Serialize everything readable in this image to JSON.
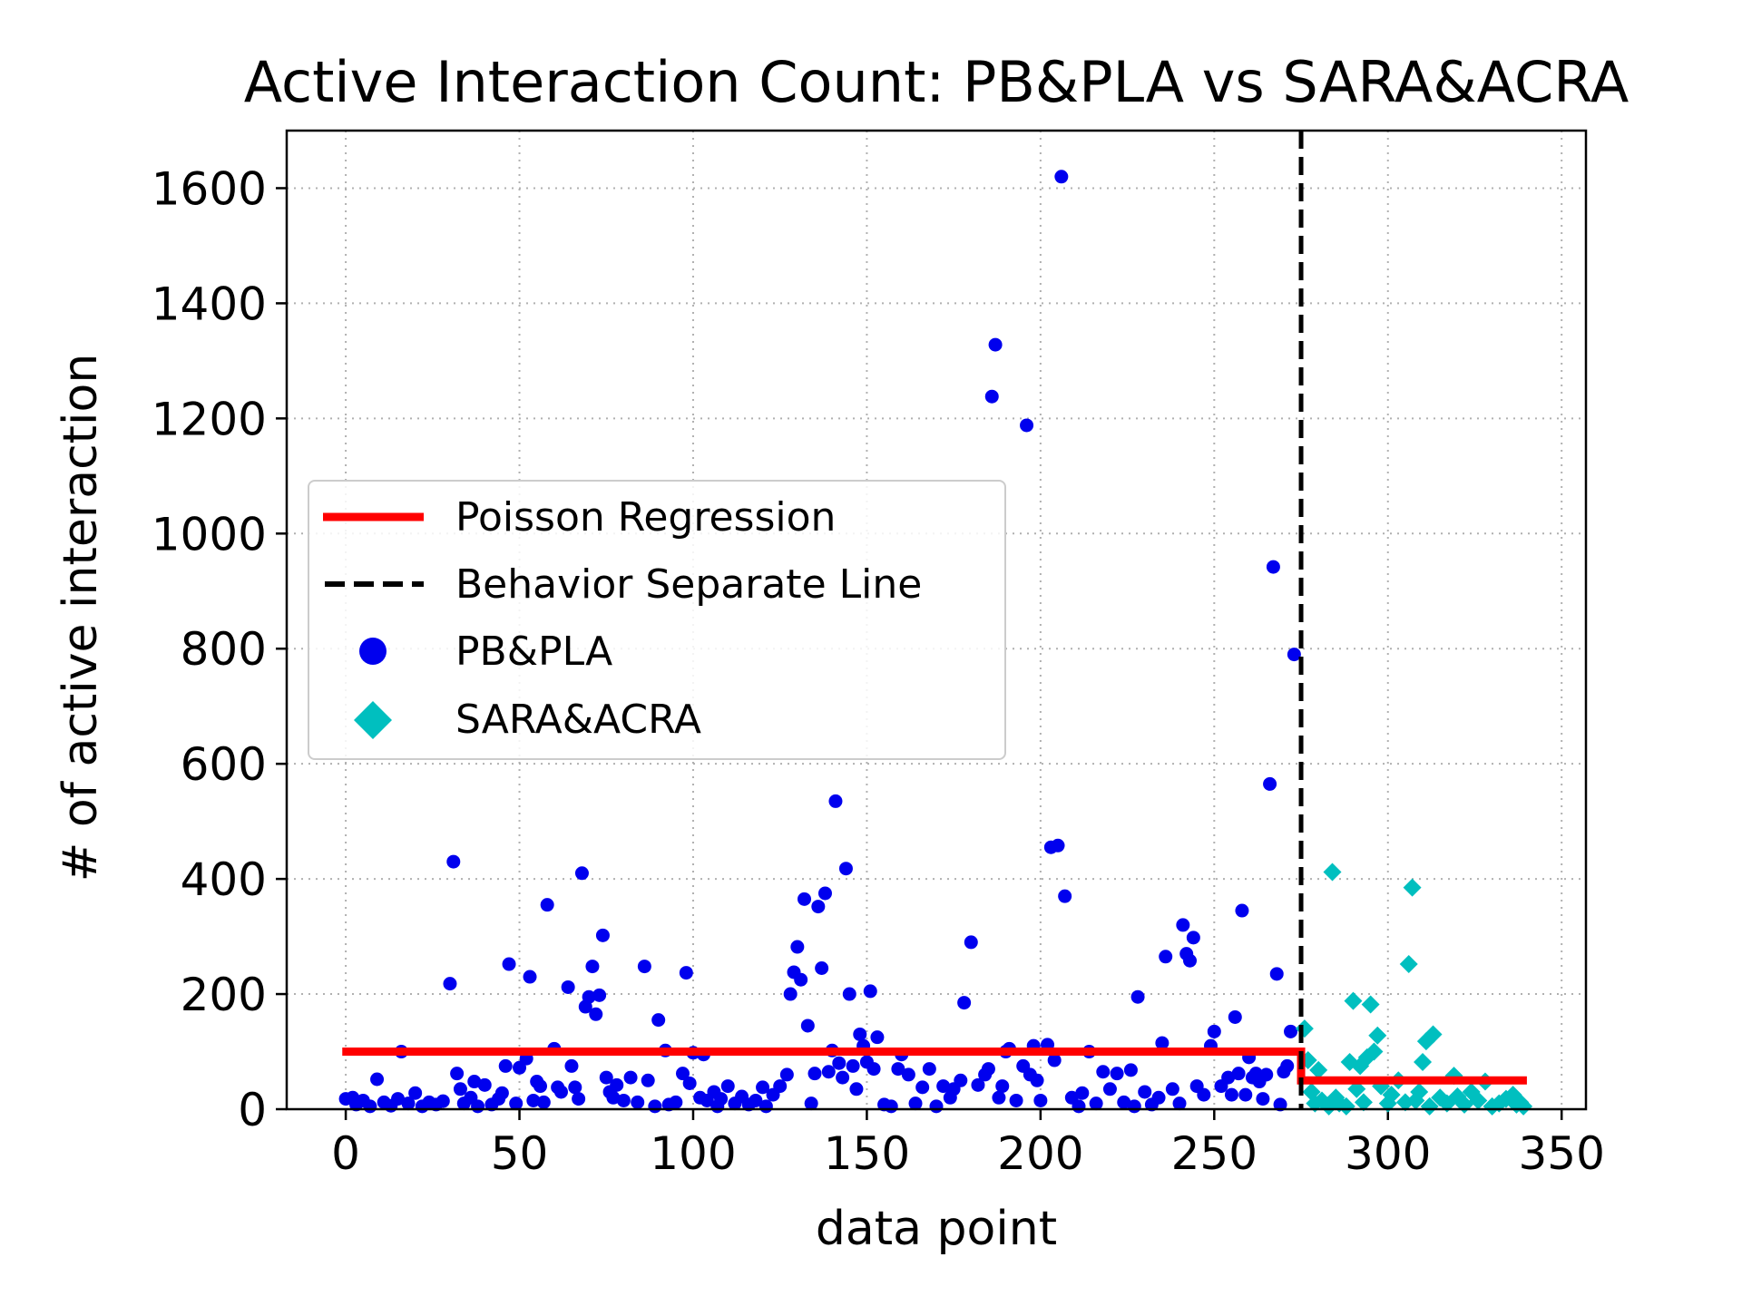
{
  "chart_data": {
    "type": "scatter",
    "title": "Active Interaction Count: PB&PLA vs SARA&ACRA",
    "xlabel": "data point",
    "ylabel": "# of active interaction",
    "xlim": [
      -17,
      357
    ],
    "ylim": [
      0,
      1700
    ],
    "xticks": [
      0,
      50,
      100,
      150,
      200,
      250,
      300,
      350
    ],
    "yticks": [
      0,
      200,
      400,
      600,
      800,
      1000,
      1200,
      1400,
      1600
    ],
    "grid": true,
    "legend_position": "center-left",
    "separator_x": 275,
    "series": [
      {
        "name": "Poisson Regression",
        "kind": "step-line",
        "color": "#ff0000",
        "points": [
          [
            -1,
            100
          ],
          [
            275,
            100
          ],
          [
            275,
            50
          ],
          [
            340,
            50
          ]
        ]
      },
      {
        "name": "Behavior Separate Line",
        "kind": "vertical-dashed-line",
        "color": "#000000",
        "x": 275
      },
      {
        "name": "PB&PLA",
        "kind": "scatter",
        "marker": "circle",
        "color": "#0000ee",
        "points": [
          [
            0,
            18
          ],
          [
            2,
            20
          ],
          [
            3,
            8
          ],
          [
            5,
            15
          ],
          [
            7,
            5
          ],
          [
            9,
            52
          ],
          [
            11,
            12
          ],
          [
            13,
            6
          ],
          [
            15,
            18
          ],
          [
            16,
            100
          ],
          [
            18,
            10
          ],
          [
            20,
            28
          ],
          [
            22,
            5
          ],
          [
            24,
            12
          ],
          [
            26,
            8
          ],
          [
            28,
            14
          ],
          [
            30,
            218
          ],
          [
            31,
            430
          ],
          [
            32,
            62
          ],
          [
            33,
            35
          ],
          [
            34,
            10
          ],
          [
            36,
            20
          ],
          [
            37,
            48
          ],
          [
            38,
            5
          ],
          [
            40,
            42
          ],
          [
            42,
            8
          ],
          [
            44,
            18
          ],
          [
            45,
            28
          ],
          [
            46,
            75
          ],
          [
            47,
            252
          ],
          [
            49,
            10
          ],
          [
            50,
            72
          ],
          [
            52,
            88
          ],
          [
            53,
            230
          ],
          [
            54,
            15
          ],
          [
            55,
            48
          ],
          [
            56,
            40
          ],
          [
            57,
            12
          ],
          [
            58,
            355
          ],
          [
            60,
            105
          ],
          [
            61,
            38
          ],
          [
            62,
            30
          ],
          [
            64,
            212
          ],
          [
            65,
            75
          ],
          [
            66,
            38
          ],
          [
            67,
            18
          ],
          [
            68,
            410
          ],
          [
            69,
            178
          ],
          [
            70,
            195
          ],
          [
            71,
            248
          ],
          [
            72,
            165
          ],
          [
            73,
            198
          ],
          [
            74,
            302
          ],
          [
            75,
            55
          ],
          [
            76,
            30
          ],
          [
            77,
            20
          ],
          [
            78,
            42
          ],
          [
            80,
            15
          ],
          [
            82,
            55
          ],
          [
            84,
            12
          ],
          [
            86,
            248
          ],
          [
            87,
            50
          ],
          [
            89,
            5
          ],
          [
            90,
            155
          ],
          [
            92,
            102
          ],
          [
            93,
            8
          ],
          [
            95,
            12
          ],
          [
            97,
            62
          ],
          [
            98,
            237
          ],
          [
            99,
            45
          ],
          [
            100,
            98
          ],
          [
            102,
            20
          ],
          [
            103,
            95
          ],
          [
            104,
            15
          ],
          [
            106,
            30
          ],
          [
            107,
            5
          ],
          [
            108,
            18
          ],
          [
            110,
            40
          ],
          [
            112,
            10
          ],
          [
            114,
            22
          ],
          [
            116,
            8
          ],
          [
            118,
            15
          ],
          [
            120,
            38
          ],
          [
            121,
            5
          ],
          [
            123,
            25
          ],
          [
            125,
            40
          ],
          [
            127,
            60
          ],
          [
            128,
            200
          ],
          [
            129,
            238
          ],
          [
            130,
            282
          ],
          [
            131,
            225
          ],
          [
            132,
            365
          ],
          [
            133,
            145
          ],
          [
            134,
            10
          ],
          [
            135,
            62
          ],
          [
            136,
            352
          ],
          [
            137,
            245
          ],
          [
            138,
            375
          ],
          [
            139,
            65
          ],
          [
            140,
            102
          ],
          [
            141,
            535
          ],
          [
            142,
            80
          ],
          [
            143,
            55
          ],
          [
            144,
            418
          ],
          [
            145,
            200
          ],
          [
            146,
            75
          ],
          [
            147,
            35
          ],
          [
            148,
            130
          ],
          [
            149,
            110
          ],
          [
            150,
            82
          ],
          [
            151,
            205
          ],
          [
            152,
            70
          ],
          [
            153,
            125
          ],
          [
            155,
            8
          ],
          [
            157,
            5
          ],
          [
            159,
            70
          ],
          [
            160,
            95
          ],
          [
            162,
            60
          ],
          [
            164,
            10
          ],
          [
            166,
            38
          ],
          [
            168,
            70
          ],
          [
            170,
            5
          ],
          [
            172,
            40
          ],
          [
            174,
            20
          ],
          [
            175,
            35
          ],
          [
            177,
            50
          ],
          [
            178,
            185
          ],
          [
            180,
            290
          ],
          [
            182,
            42
          ],
          [
            184,
            60
          ],
          [
            185,
            70
          ],
          [
            186,
            1238
          ],
          [
            187,
            1328
          ],
          [
            188,
            20
          ],
          [
            189,
            40
          ],
          [
            190,
            100
          ],
          [
            191,
            105
          ],
          [
            193,
            15
          ],
          [
            195,
            75
          ],
          [
            196,
            1188
          ],
          [
            197,
            60
          ],
          [
            198,
            110
          ],
          [
            199,
            50
          ],
          [
            200,
            15
          ],
          [
            202,
            112
          ],
          [
            203,
            455
          ],
          [
            204,
            85
          ],
          [
            205,
            458
          ],
          [
            206,
            1620
          ],
          [
            207,
            370
          ],
          [
            209,
            20
          ],
          [
            211,
            5
          ],
          [
            212,
            28
          ],
          [
            214,
            100
          ],
          [
            216,
            10
          ],
          [
            218,
            65
          ],
          [
            220,
            35
          ],
          [
            222,
            62
          ],
          [
            224,
            12
          ],
          [
            226,
            68
          ],
          [
            227,
            5
          ],
          [
            228,
            195
          ],
          [
            230,
            30
          ],
          [
            232,
            8
          ],
          [
            234,
            20
          ],
          [
            235,
            115
          ],
          [
            236,
            265
          ],
          [
            238,
            35
          ],
          [
            240,
            10
          ],
          [
            241,
            320
          ],
          [
            242,
            270
          ],
          [
            243,
            258
          ],
          [
            244,
            298
          ],
          [
            245,
            40
          ],
          [
            247,
            25
          ],
          [
            249,
            110
          ],
          [
            250,
            135
          ],
          [
            252,
            40
          ],
          [
            254,
            55
          ],
          [
            255,
            25
          ],
          [
            256,
            160
          ],
          [
            257,
            62
          ],
          [
            258,
            345
          ],
          [
            259,
            25
          ],
          [
            260,
            90
          ],
          [
            261,
            55
          ],
          [
            262,
            62
          ],
          [
            263,
            48
          ],
          [
            264,
            18
          ],
          [
            265,
            60
          ],
          [
            266,
            565
          ],
          [
            267,
            942
          ],
          [
            268,
            235
          ],
          [
            269,
            8
          ],
          [
            270,
            65
          ],
          [
            271,
            75
          ],
          [
            272,
            135
          ],
          [
            273,
            790
          ]
        ]
      },
      {
        "name": "SARA&ACRA",
        "kind": "scatter",
        "marker": "diamond",
        "color": "#00bfbf",
        "points": [
          [
            276,
            140
          ],
          [
            277,
            85
          ],
          [
            278,
            30
          ],
          [
            279,
            10
          ],
          [
            280,
            68
          ],
          [
            281,
            15
          ],
          [
            283,
            5
          ],
          [
            284,
            412
          ],
          [
            285,
            20
          ],
          [
            286,
            10
          ],
          [
            288,
            5
          ],
          [
            289,
            82
          ],
          [
            290,
            188
          ],
          [
            291,
            35
          ],
          [
            292,
            75
          ],
          [
            293,
            12
          ],
          [
            294,
            90
          ],
          [
            295,
            182
          ],
          [
            296,
            100
          ],
          [
            297,
            128
          ],
          [
            298,
            40
          ],
          [
            300,
            10
          ],
          [
            301,
            25
          ],
          [
            303,
            50
          ],
          [
            305,
            12
          ],
          [
            306,
            252
          ],
          [
            307,
            385
          ],
          [
            308,
            15
          ],
          [
            309,
            30
          ],
          [
            310,
            82
          ],
          [
            311,
            118
          ],
          [
            312,
            5
          ],
          [
            313,
            130
          ],
          [
            315,
            20
          ],
          [
            317,
            10
          ],
          [
            319,
            58
          ],
          [
            320,
            22
          ],
          [
            322,
            8
          ],
          [
            324,
            30
          ],
          [
            326,
            15
          ],
          [
            328,
            48
          ],
          [
            330,
            5
          ],
          [
            332,
            10
          ],
          [
            334,
            18
          ],
          [
            336,
            25
          ],
          [
            337,
            8
          ],
          [
            338,
            12
          ],
          [
            339,
            5
          ]
        ]
      }
    ]
  }
}
